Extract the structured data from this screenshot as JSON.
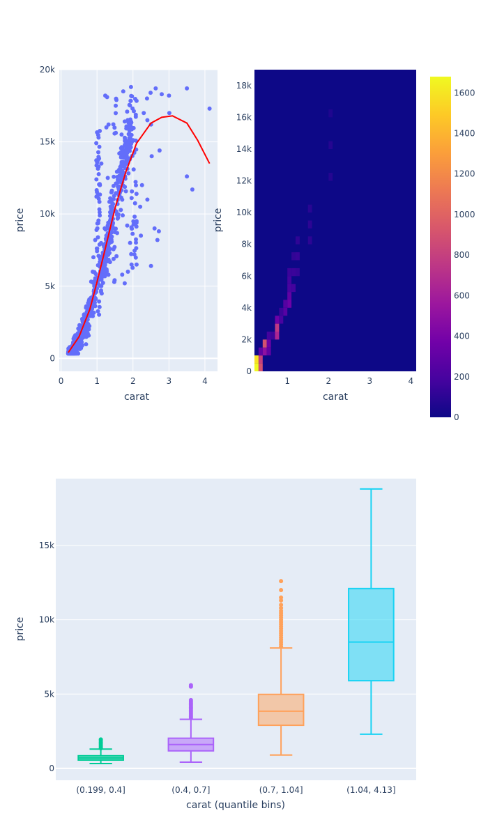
{
  "chart_data": [
    {
      "type": "scatter",
      "xlabel": "carat",
      "ylabel": "price",
      "xlim": [
        -0.05,
        4.35
      ],
      "ylim": [
        -900,
        20000
      ],
      "xticks": [
        0,
        1,
        2,
        3,
        4
      ],
      "xtick_labels": [
        "0",
        "1",
        "2",
        "3",
        "4"
      ],
      "yticks": [
        0,
        5000,
        10000,
        15000,
        20000
      ],
      "ytick_labels": [
        "0",
        "5k",
        "10k",
        "15k",
        "20k"
      ],
      "grid": true,
      "colors": {
        "points": "#636efa",
        "fit_line": "#ff0000",
        "plot_bg": "#e5ecf6"
      },
      "point_clusters": [
        {
          "x": 0.3,
          "y": 500
        },
        {
          "x": 0.5,
          "y": 1500
        },
        {
          "x": 0.7,
          "y": 2600
        },
        {
          "x": 0.9,
          "y": 4000
        },
        {
          "x": 1.0,
          "y": 5200
        },
        {
          "x": 1.1,
          "y": 6400
        },
        {
          "x": 1.2,
          "y": 7600
        },
        {
          "x": 1.5,
          "y": 10500
        },
        {
          "x": 2.0,
          "y": 15000
        },
        {
          "x": 2.1,
          "y": 17000
        }
      ],
      "points": [
        {
          "x": 1.23,
          "y": 18200
        },
        {
          "x": 1.28,
          "y": 18100
        },
        {
          "x": 1.73,
          "y": 18500
        },
        {
          "x": 1.54,
          "y": 17900
        },
        {
          "x": 2.39,
          "y": 18000
        },
        {
          "x": 2.49,
          "y": 18400
        },
        {
          "x": 2.63,
          "y": 18700
        },
        {
          "x": 2.3,
          "y": 17000
        },
        {
          "x": 2.4,
          "y": 16500
        },
        {
          "x": 2.5,
          "y": 16200
        },
        {
          "x": 2.8,
          "y": 18300
        },
        {
          "x": 3.0,
          "y": 18200
        },
        {
          "x": 3.01,
          "y": 17000
        },
        {
          "x": 3.5,
          "y": 18700
        },
        {
          "x": 4.13,
          "y": 17300
        },
        {
          "x": 2.74,
          "y": 14400
        },
        {
          "x": 2.52,
          "y": 14000
        },
        {
          "x": 2.25,
          "y": 12000
        },
        {
          "x": 2.4,
          "y": 11000
        },
        {
          "x": 2.6,
          "y": 9000
        },
        {
          "x": 2.72,
          "y": 8800
        },
        {
          "x": 2.2,
          "y": 10500
        },
        {
          "x": 2.1,
          "y": 9500
        },
        {
          "x": 2.22,
          "y": 8500
        },
        {
          "x": 2.5,
          "y": 6400
        },
        {
          "x": 2.1,
          "y": 6500
        },
        {
          "x": 2.04,
          "y": 7200
        },
        {
          "x": 3.5,
          "y": 12600
        },
        {
          "x": 3.65,
          "y": 11700
        },
        {
          "x": 2.68,
          "y": 8200
        },
        {
          "x": 1.84,
          "y": 9200
        },
        {
          "x": 1.92,
          "y": 8000
        },
        {
          "x": 1.96,
          "y": 6500
        },
        {
          "x": 1.77,
          "y": 5200
        },
        {
          "x": 1.7,
          "y": 5800
        },
        {
          "x": 1.86,
          "y": 6000
        },
        {
          "x": 1.6,
          "y": 11500
        },
        {
          "x": 1.7,
          "y": 13000
        },
        {
          "x": 1.62,
          "y": 14200
        },
        {
          "x": 1.12,
          "y": 13500
        },
        {
          "x": 1.08,
          "y": 12000
        },
        {
          "x": 1.26,
          "y": 16000
        },
        {
          "x": 1.32,
          "y": 16200
        },
        {
          "x": 1.52,
          "y": 17500
        },
        {
          "x": 1.3,
          "y": 12500
        },
        {
          "x": 1.4,
          "y": 11500
        },
        {
          "x": 0.9,
          "y": 7000
        },
        {
          "x": 0.95,
          "y": 8200
        },
        {
          "x": 0.88,
          "y": 6000
        },
        {
          "x": 0.7,
          "y": 3600
        },
        {
          "x": 0.62,
          "y": 2600
        }
      ],
      "fit_line": [
        {
          "x": 0.2,
          "y": 400
        },
        {
          "x": 0.5,
          "y": 1500
        },
        {
          "x": 0.8,
          "y": 3400
        },
        {
          "x": 1.0,
          "y": 5300
        },
        {
          "x": 1.2,
          "y": 7300
        },
        {
          "x": 1.5,
          "y": 10400
        },
        {
          "x": 1.8,
          "y": 12900
        },
        {
          "x": 2.1,
          "y": 14900
        },
        {
          "x": 2.5,
          "y": 16300
        },
        {
          "x": 2.8,
          "y": 16700
        },
        {
          "x": 3.1,
          "y": 16800
        },
        {
          "x": 3.5,
          "y": 16300
        },
        {
          "x": 3.8,
          "y": 15100
        },
        {
          "x": 4.13,
          "y": 13500
        }
      ]
    },
    {
      "type": "heatmap",
      "xlabel": "carat",
      "ylabel": "price",
      "xlim": [
        0.2,
        4.13
      ],
      "ylim": [
        0,
        19000
      ],
      "xticks": [
        1,
        2,
        3,
        4
      ],
      "xtick_labels": [
        "1",
        "2",
        "3",
        "4"
      ],
      "yticks": [
        0,
        2000,
        4000,
        6000,
        8000,
        10000,
        12000,
        14000,
        16000,
        18000
      ],
      "ytick_labels": [
        "0",
        "2k",
        "4k",
        "6k",
        "8k",
        "10k",
        "12k",
        "14k",
        "16k",
        "18k"
      ],
      "colorbar": {
        "ticks": [
          0,
          200,
          400,
          600,
          800,
          1000,
          1200,
          1400,
          1600
        ],
        "tick_labels": [
          "0",
          "200",
          "400",
          "600",
          "800",
          "1000",
          "1200",
          "1400",
          "1600"
        ],
        "range": [
          0,
          1680
        ]
      },
      "colorscale": [
        "#0d0887",
        "#46039f",
        "#7201a8",
        "#9c179e",
        "#bd3786",
        "#d8576b",
        "#ed7953",
        "#fb9f3a",
        "#fdca26",
        "#f0f921"
      ],
      "bin_width_x": 0.1,
      "bin_width_y": 500,
      "background_count": 0,
      "cells": [
        {
          "x": 0.2,
          "y": 0,
          "count": 1680
        },
        {
          "x": 0.2,
          "y": 500,
          "count": 1580
        },
        {
          "x": 0.3,
          "y": 0,
          "count": 900
        },
        {
          "x": 0.3,
          "y": 500,
          "count": 800
        },
        {
          "x": 0.3,
          "y": 1000,
          "count": 300
        },
        {
          "x": 0.4,
          "y": 1000,
          "count": 500
        },
        {
          "x": 0.4,
          "y": 1500,
          "count": 900
        },
        {
          "x": 0.5,
          "y": 1000,
          "count": 300
        },
        {
          "x": 0.5,
          "y": 1500,
          "count": 350
        },
        {
          "x": 0.5,
          "y": 2000,
          "count": 180
        },
        {
          "x": 0.6,
          "y": 2000,
          "count": 150
        },
        {
          "x": 0.7,
          "y": 2000,
          "count": 650
        },
        {
          "x": 0.7,
          "y": 2500,
          "count": 760
        },
        {
          "x": 0.7,
          "y": 3000,
          "count": 350
        },
        {
          "x": 0.8,
          "y": 3000,
          "count": 200
        },
        {
          "x": 0.8,
          "y": 3500,
          "count": 150
        },
        {
          "x": 0.9,
          "y": 3500,
          "count": 260
        },
        {
          "x": 0.9,
          "y": 4000,
          "count": 250
        },
        {
          "x": 1.0,
          "y": 4000,
          "count": 350
        },
        {
          "x": 1.0,
          "y": 4500,
          "count": 300
        },
        {
          "x": 1.0,
          "y": 5000,
          "count": 200
        },
        {
          "x": 1.0,
          "y": 5500,
          "count": 180
        },
        {
          "x": 1.0,
          "y": 6000,
          "count": 150
        },
        {
          "x": 1.1,
          "y": 5000,
          "count": 180
        },
        {
          "x": 1.1,
          "y": 6000,
          "count": 150
        },
        {
          "x": 1.1,
          "y": 7000,
          "count": 120
        },
        {
          "x": 1.2,
          "y": 6000,
          "count": 130
        },
        {
          "x": 1.2,
          "y": 7000,
          "count": 140
        },
        {
          "x": 1.2,
          "y": 8000,
          "count": 110
        },
        {
          "x": 1.5,
          "y": 8000,
          "count": 100
        },
        {
          "x": 1.5,
          "y": 9000,
          "count": 100
        },
        {
          "x": 1.5,
          "y": 10000,
          "count": 90
        },
        {
          "x": 2.0,
          "y": 12000,
          "count": 80
        },
        {
          "x": 2.0,
          "y": 14000,
          "count": 80
        },
        {
          "x": 2.0,
          "y": 16000,
          "count": 60
        }
      ]
    },
    {
      "type": "box",
      "xlabel": "carat (quantile bins)",
      "ylabel": "price",
      "ylim": [
        -800,
        19500
      ],
      "yticks": [
        0,
        5000,
        10000,
        15000
      ],
      "ytick_labels": [
        "0",
        "5k",
        "10k",
        "15k"
      ],
      "categories": [
        "(0.199, 0.4]",
        "(0.4, 0.7]",
        "(0.7, 1.04]",
        "(1.04, 4.13]"
      ],
      "colors": [
        "#00cc96",
        "#ab63fa",
        "#ffa15a",
        "#19d3f3"
      ],
      "boxes": [
        {
          "category": "(0.199, 0.4]",
          "lowerfence": 326,
          "q1": 560,
          "median": 700,
          "q3": 850,
          "upperfence": 1300,
          "outliers": [
            1350,
            1450,
            1550,
            1650,
            1750,
            1850,
            1950
          ]
        },
        {
          "category": "(0.4, 0.7]",
          "lowerfence": 420,
          "q1": 1180,
          "median": 1600,
          "q3": 2030,
          "upperfence": 3300,
          "outliers": [
            3400,
            3500,
            3600,
            3700,
            3800,
            3900,
            4000,
            4100,
            4200,
            4300,
            4400,
            4500,
            4600,
            5500,
            5600
          ]
        },
        {
          "category": "(0.7, 1.04]",
          "lowerfence": 900,
          "q1": 2900,
          "median": 3850,
          "q3": 4980,
          "upperfence": 8100,
          "outliers": [
            8200,
            8350,
            8500,
            8650,
            8800,
            8950,
            9100,
            9250,
            9400,
            9550,
            9700,
            9850,
            10000,
            10150,
            10300,
            10450,
            10600,
            10800,
            11000,
            11300,
            11500,
            12000,
            12600
          ]
        },
        {
          "category": "(1.04, 4.13]",
          "lowerfence": 2300,
          "q1": 5900,
          "median": 8500,
          "q3": 12100,
          "upperfence": 18800,
          "outliers": []
        }
      ]
    }
  ]
}
